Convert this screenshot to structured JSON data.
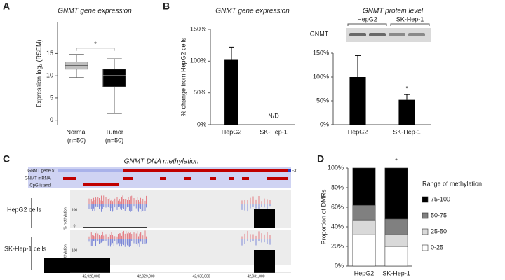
{
  "panel_labels": [
    "A",
    "B",
    "C",
    "D"
  ],
  "chart_data": [
    {
      "type": "box",
      "title": "GNMT gene expression",
      "y_label": "Expression log₂ (RSEM)",
      "categories": [
        "Normal",
        "Tumor"
      ],
      "sample_sizes": [
        "(n=50)",
        "(n=50)"
      ],
      "whisker_low": [
        9.6,
        1.5
      ],
      "q1": [
        11.5,
        7.5
      ],
      "median": [
        12.3,
        10.0
      ],
      "q3": [
        13.1,
        11.5
      ],
      "whisker_high": [
        14.8,
        13.8
      ],
      "colors": [
        "#bfbfbf",
        "#000000"
      ],
      "ylim": [
        -1,
        22
      ],
      "yticks": [
        0,
        5,
        10,
        15
      ],
      "significance": "*"
    },
    {
      "type": "bar",
      "title": "GNMT gene expression",
      "y_label": "% change from HepG2 cells",
      "categories": [
        "HepG2",
        "SK-Hep-1"
      ],
      "values": [
        102,
        null
      ],
      "errors": [
        20,
        null
      ],
      "markers": [
        null,
        "N/D"
      ],
      "color": "#000000",
      "ylim": [
        0,
        150
      ],
      "yticks": [
        {
          "value": 0,
          "label": "0%"
        },
        {
          "value": 50,
          "label": "50%"
        },
        {
          "value": 100,
          "label": "100%"
        },
        {
          "value": 150,
          "label": "150%"
        }
      ]
    },
    {
      "type": "bar",
      "title": "GNMT protein level",
      "blot_label": "GNMT",
      "blot_lanes": [
        "HepG2",
        "SK-Hep-1"
      ],
      "categories": [
        "HepG2",
        "SK-Hep-1"
      ],
      "values": [
        100,
        52
      ],
      "errors": [
        45,
        11
      ],
      "markers": [
        null,
        "*"
      ],
      "color": "#000000",
      "ylim": [
        0,
        150
      ],
      "yticks": [
        {
          "value": 0,
          "label": "0%"
        },
        {
          "value": 50,
          "label": "50%"
        },
        {
          "value": 100,
          "label": "100%"
        },
        {
          "value": 150,
          "label": "150%"
        }
      ]
    },
    {
      "type": "stacked_bar",
      "y_label": "Proportion of DMRs",
      "legend_title": "Range of methylation",
      "categories": [
        "HepG2",
        "SK-Hep-1"
      ],
      "markers": [
        null,
        "*"
      ],
      "series": [
        {
          "name": "0-25",
          "color": "#ffffff",
          "values": [
            32,
            20
          ]
        },
        {
          "name": "25-50",
          "color": "#d9d9d9",
          "values": [
            15,
            12
          ]
        },
        {
          "name": "50-75",
          "color": "#808080",
          "values": [
            15,
            16
          ]
        },
        {
          "name": "75-100",
          "color": "#000000",
          "values": [
            38,
            52
          ]
        }
      ],
      "ylim": [
        0,
        100
      ],
      "yticks": [
        {
          "value": 0,
          "label": "0%"
        },
        {
          "value": 20,
          "label": "20%"
        },
        {
          "value": 40,
          "label": "40%"
        },
        {
          "value": 60,
          "label": "60%"
        },
        {
          "value": 80,
          "label": "80%"
        },
        {
          "value": 100,
          "label": "100%"
        }
      ]
    }
  ],
  "genome_panel": {
    "title": "GNMT DNA methylation",
    "track_labels": [
      "GNMT gene",
      "GNMT mRNA",
      "CpG island"
    ],
    "strand_labels": [
      "5'",
      "-3'"
    ],
    "samples": [
      "HepG2 cells",
      "SK-Hep-1 cells"
    ],
    "axis_label": "% methylation",
    "scale_labels": [
      "100",
      "0"
    ],
    "coordinates": [
      "42,928,000",
      "42,929,000",
      "42,930,000",
      "42,931,000"
    ]
  }
}
